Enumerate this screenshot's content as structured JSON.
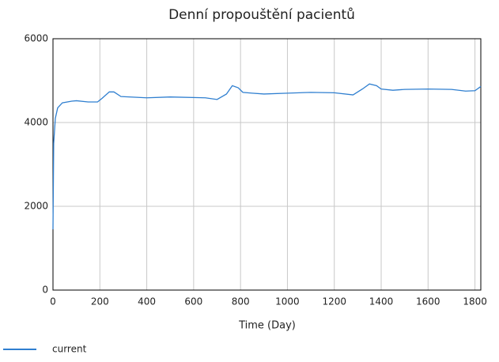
{
  "chart_data": {
    "type": "line",
    "title": "Denní propouštění pacientů",
    "x_label": "Time (Day)",
    "x": [
      0,
      3,
      10,
      20,
      40,
      80,
      100,
      150,
      190,
      210,
      240,
      260,
      290,
      400,
      500,
      650,
      700,
      740,
      765,
      790,
      810,
      850,
      900,
      1000,
      1100,
      1200,
      1280,
      1320,
      1350,
      1380,
      1400,
      1450,
      1500,
      1600,
      1700,
      1760,
      1800,
      1825
    ],
    "series": [
      {
        "name": "current",
        "color": "#2f7fd0",
        "values": [
          1450,
          3500,
          4100,
          4350,
          4470,
          4510,
          4520,
          4490,
          4490,
          4580,
          4730,
          4730,
          4620,
          4590,
          4610,
          4590,
          4550,
          4680,
          4880,
          4830,
          4720,
          4700,
          4680,
          4700,
          4720,
          4710,
          4660,
          4800,
          4920,
          4880,
          4800,
          4770,
          4790,
          4800,
          4790,
          4750,
          4760,
          4860
        ]
      }
    ],
    "xlim": [
      0,
      1825
    ],
    "xticks": [
      0,
      200,
      400,
      600,
      800,
      1000,
      1200,
      1400,
      1600,
      1800
    ],
    "ylim": [
      0,
      6000
    ],
    "yticks": [
      0,
      2000,
      4000,
      6000
    ],
    "grid": true
  }
}
